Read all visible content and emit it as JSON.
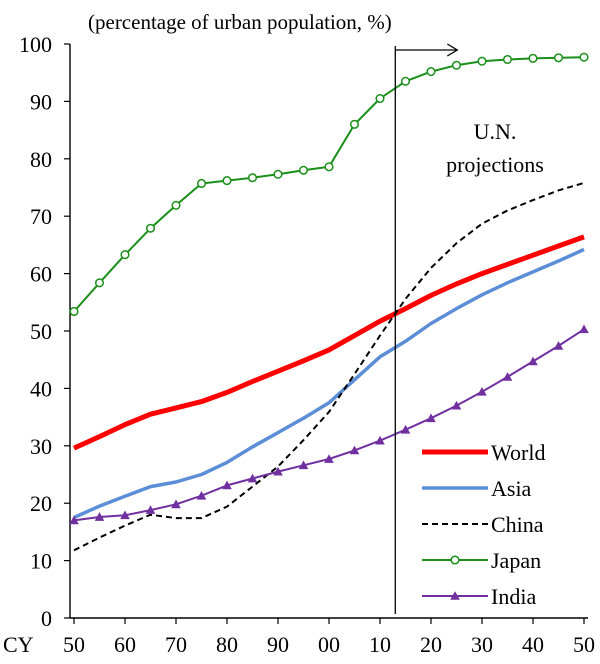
{
  "chart_data": {
    "type": "line",
    "subtitle": "(percentage of urban population, %)",
    "annotation": [
      "U.N.",
      "projections"
    ],
    "x_prefix": "CY",
    "x_years": [
      1950,
      1955,
      1960,
      1965,
      1970,
      1975,
      1980,
      1985,
      1990,
      1995,
      2000,
      2005,
      2010,
      2015,
      2020,
      2025,
      2030,
      2035,
      2040,
      2045,
      2050
    ],
    "x_tick_labels": [
      "50",
      "60",
      "70",
      "80",
      "90",
      "00",
      "10",
      "20",
      "30",
      "40",
      "50"
    ],
    "y_ticks": [
      0,
      10,
      20,
      30,
      40,
      50,
      60,
      70,
      80,
      90,
      100
    ],
    "ylim": [
      0,
      100
    ],
    "projection_start_year": 2013,
    "legend_position": "bottom-right",
    "series": [
      {
        "name": "World",
        "color": "#ff0000",
        "style": "thick-solid",
        "marker": "none",
        "values": [
          29.6,
          31.6,
          33.7,
          35.5,
          36.6,
          37.7,
          39.3,
          41.2,
          43.0,
          44.8,
          46.7,
          49.2,
          51.7,
          53.9,
          56.2,
          58.2,
          60.0,
          61.6,
          63.2,
          64.8,
          66.4
        ]
      },
      {
        "name": "Asia",
        "color": "#5b8ed6",
        "style": "solid",
        "marker": "none",
        "values": [
          17.5,
          19.5,
          21.2,
          22.9,
          23.7,
          25.0,
          27.1,
          29.8,
          32.3,
          34.8,
          37.5,
          41.5,
          45.5,
          48.2,
          51.3,
          53.9,
          56.3,
          58.4,
          60.3,
          62.2,
          64.2
        ]
      },
      {
        "name": "China",
        "color": "#000000",
        "style": "dashed",
        "marker": "none",
        "values": [
          11.8,
          14.0,
          16.1,
          18.0,
          17.4,
          17.4,
          19.4,
          22.9,
          26.4,
          31.0,
          35.9,
          42.5,
          49.2,
          55.6,
          61.0,
          65.3,
          68.7,
          71.0,
          72.8,
          74.5,
          75.8
        ]
      },
      {
        "name": "Japan",
        "color": "#1a8f1a",
        "style": "solid",
        "marker": "circle",
        "values": [
          53.4,
          58.4,
          63.3,
          67.9,
          71.9,
          75.7,
          76.2,
          76.7,
          77.3,
          78.0,
          78.6,
          86.0,
          90.5,
          93.5,
          95.2,
          96.3,
          97.0,
          97.3,
          97.5,
          97.6,
          97.7
        ]
      },
      {
        "name": "India",
        "color": "#7030a0",
        "style": "solid",
        "marker": "triangle",
        "values": [
          17.0,
          17.6,
          17.9,
          18.8,
          19.8,
          21.3,
          23.1,
          24.3,
          25.5,
          26.6,
          27.7,
          29.2,
          30.9,
          32.8,
          34.8,
          37.0,
          39.4,
          42.0,
          44.7,
          47.4,
          50.3
        ]
      }
    ]
  }
}
